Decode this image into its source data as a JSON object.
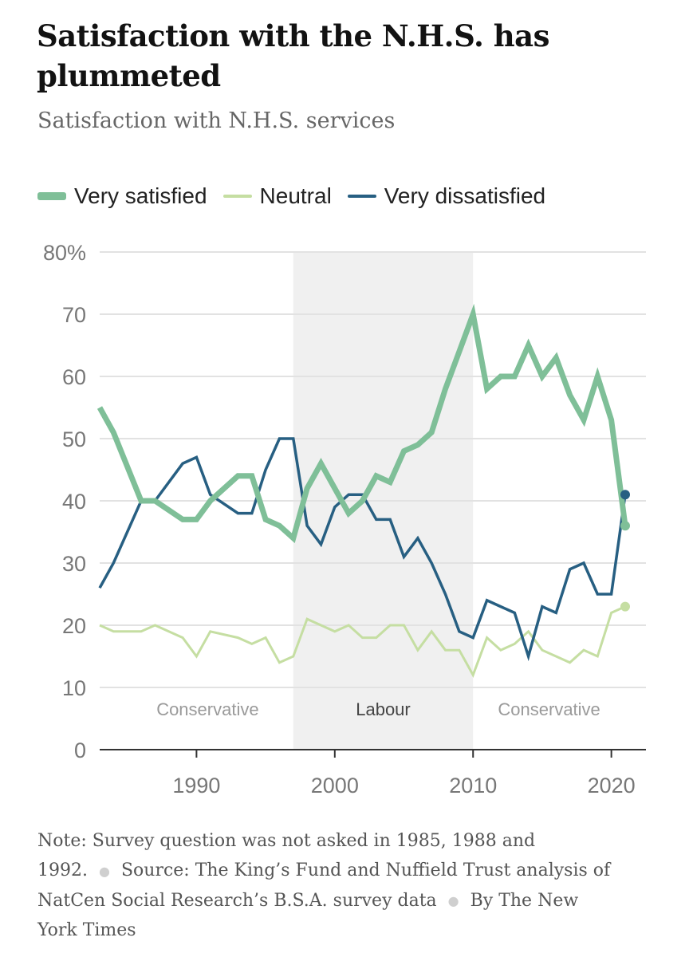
{
  "header": {
    "title": "Satisfaction with the N.H.S. has plummeted",
    "subtitle": "Satisfaction with N.H.S. services"
  },
  "legend": [
    {
      "label": "Very satisfied",
      "color": "#7fbf98"
    },
    {
      "label": "Neutral",
      "color": "#c5dea2"
    },
    {
      "label": "Very dissatisfied",
      "color": "#275f82"
    }
  ],
  "footer": {
    "note": "Note: Survey question was not asked in 1985, 1988 and 1992.",
    "source": "Source: The King’s Fund and Nuffield Trust analysis of NatCen Social Research’s B.S.A. survey data",
    "credit": "By The New York Times"
  },
  "chart_data": {
    "type": "line",
    "title": "Satisfaction with the N.H.S. has plummeted",
    "subtitle": "Satisfaction with N.H.S. services",
    "xlabel": "",
    "ylabel": "",
    "xlim": [
      1983,
      2022.5
    ],
    "ylim": [
      0,
      80
    ],
    "x_ticks": [
      1990,
      2000,
      2010,
      2020
    ],
    "y_ticks": [
      0,
      10,
      20,
      30,
      40,
      50,
      60,
      70,
      80
    ],
    "y_tick_labels": [
      "0",
      "10",
      "20",
      "30",
      "40",
      "50",
      "60",
      "70",
      "80%"
    ],
    "grid": true,
    "periods": [
      {
        "label": "Conservative",
        "start": 1983,
        "end": 1997,
        "shaded": false
      },
      {
        "label": "Labour",
        "start": 1997,
        "end": 2010,
        "shaded": true
      },
      {
        "label": "Conservative",
        "start": 2010,
        "end": 2021,
        "shaded": false
      }
    ],
    "series": [
      {
        "name": "Very satisfied",
        "color": "#7fbf98",
        "points": [
          [
            1983,
            55
          ],
          [
            1984,
            51
          ],
          [
            1986,
            40
          ],
          [
            1987,
            40
          ],
          [
            1989,
            37
          ],
          [
            1990,
            37
          ],
          [
            1991,
            40
          ],
          [
            1993,
            44
          ],
          [
            1994,
            44
          ],
          [
            1995,
            37
          ],
          [
            1996,
            36
          ],
          [
            1997,
            34
          ],
          [
            1998,
            42
          ],
          [
            1999,
            46
          ],
          [
            2000,
            42
          ],
          [
            2001,
            38
          ],
          [
            2002,
            40
          ],
          [
            2003,
            44
          ],
          [
            2004,
            43
          ],
          [
            2005,
            48
          ],
          [
            2006,
            49
          ],
          [
            2007,
            51
          ],
          [
            2008,
            58
          ],
          [
            2009,
            64
          ],
          [
            2010,
            70
          ],
          [
            2011,
            58
          ],
          [
            2012,
            60
          ],
          [
            2013,
            60
          ],
          [
            2014,
            65
          ],
          [
            2015,
            60
          ],
          [
            2016,
            63
          ],
          [
            2017,
            57
          ],
          [
            2018,
            53
          ],
          [
            2019,
            60
          ],
          [
            2020,
            53
          ],
          [
            2021,
            36
          ]
        ]
      },
      {
        "name": "Neutral",
        "color": "#c5dea2",
        "points": [
          [
            1983,
            20
          ],
          [
            1984,
            19
          ],
          [
            1986,
            19
          ],
          [
            1987,
            20
          ],
          [
            1989,
            18
          ],
          [
            1990,
            15
          ],
          [
            1991,
            19
          ],
          [
            1993,
            18
          ],
          [
            1994,
            17
          ],
          [
            1995,
            18
          ],
          [
            1996,
            14
          ],
          [
            1997,
            15
          ],
          [
            1998,
            21
          ],
          [
            1999,
            20
          ],
          [
            2000,
            19
          ],
          [
            2001,
            20
          ],
          [
            2002,
            18
          ],
          [
            2003,
            18
          ],
          [
            2004,
            20
          ],
          [
            2005,
            20
          ],
          [
            2006,
            16
          ],
          [
            2007,
            19
          ],
          [
            2008,
            16
          ],
          [
            2009,
            16
          ],
          [
            2010,
            12
          ],
          [
            2011,
            18
          ],
          [
            2012,
            16
          ],
          [
            2013,
            17
          ],
          [
            2014,
            19
          ],
          [
            2015,
            16
          ],
          [
            2016,
            15
          ],
          [
            2017,
            14
          ],
          [
            2018,
            16
          ],
          [
            2019,
            15
          ],
          [
            2020,
            22
          ],
          [
            2021,
            23
          ]
        ]
      },
      {
        "name": "Very dissatisfied",
        "color": "#275f82",
        "points": [
          [
            1983,
            26
          ],
          [
            1984,
            30
          ],
          [
            1986,
            40
          ],
          [
            1987,
            40
          ],
          [
            1989,
            46
          ],
          [
            1990,
            47
          ],
          [
            1991,
            41
          ],
          [
            1993,
            38
          ],
          [
            1994,
            38
          ],
          [
            1995,
            45
          ],
          [
            1996,
            50
          ],
          [
            1997,
            50
          ],
          [
            1998,
            36
          ],
          [
            1999,
            33
          ],
          [
            2000,
            39
          ],
          [
            2001,
            41
          ],
          [
            2002,
            41
          ],
          [
            2003,
            37
          ],
          [
            2004,
            37
          ],
          [
            2005,
            31
          ],
          [
            2006,
            34
          ],
          [
            2007,
            30
          ],
          [
            2008,
            25
          ],
          [
            2009,
            19
          ],
          [
            2010,
            18
          ],
          [
            2011,
            24
          ],
          [
            2012,
            23
          ],
          [
            2013,
            22
          ],
          [
            2014,
            15
          ],
          [
            2015,
            23
          ],
          [
            2016,
            22
          ],
          [
            2017,
            29
          ],
          [
            2018,
            30
          ],
          [
            2019,
            25
          ],
          [
            2020,
            25
          ],
          [
            2021,
            41
          ]
        ]
      }
    ]
  }
}
